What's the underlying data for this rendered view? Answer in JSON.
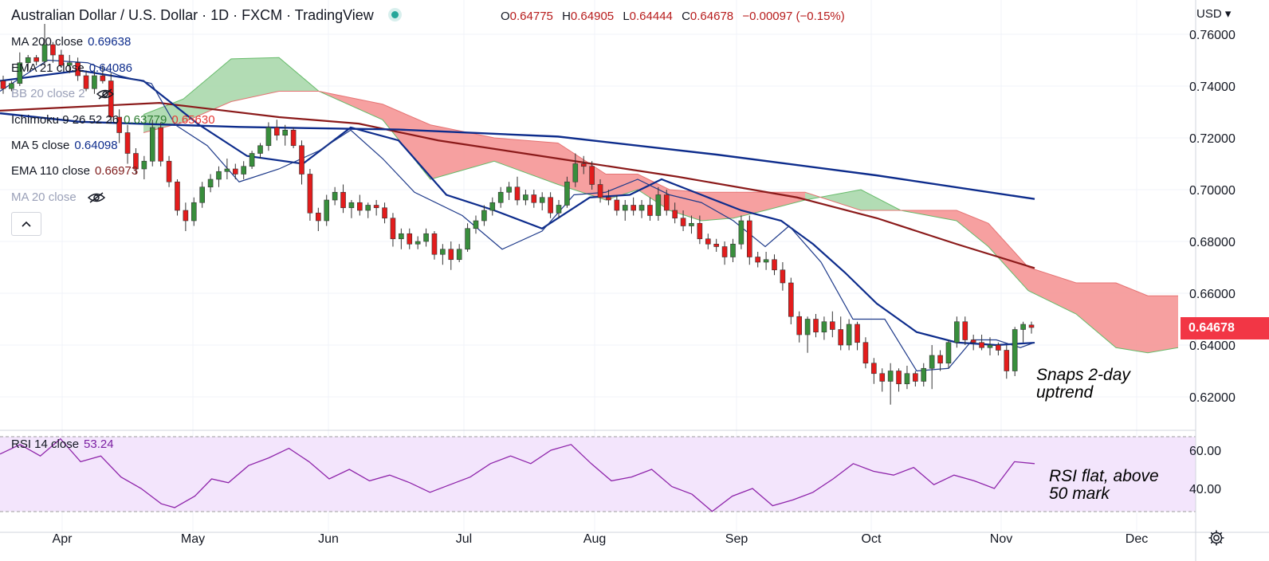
{
  "header": {
    "title": "Australian Dollar / U.S. Dollar · 1D · FXCM · TradingView",
    "ohlc": {
      "o_label": "O",
      "o": "0.64775",
      "h_label": "H",
      "h": "0.64905",
      "l_label": "L",
      "l": "0.64444",
      "c_label": "C",
      "c": "0.64678",
      "change": "−0.00097 (−0.15%)"
    }
  },
  "indicators": [
    {
      "label": "MA 200 close",
      "value": "0.69638",
      "color": "#0d2c8c"
    },
    {
      "label": "EMA 21 close",
      "value": "0.64086",
      "color": "#0d2c8c"
    },
    {
      "label": "BB 20 close 2",
      "value": "",
      "color": "#9aa0b8",
      "hidden": true
    },
    {
      "label": "Ichimoku 9 26 52 26",
      "value": "0.63779",
      "value2": "0.65630",
      "color": "#2e7d32",
      "color2": "#e53935"
    },
    {
      "label": "MA 5 close",
      "value": "0.64098",
      "color": "#0d2c8c"
    },
    {
      "label": "EMA 110 close",
      "value": "0.66973",
      "color": "#7f1d1d"
    },
    {
      "label": "MA 20 close",
      "value": "",
      "color": "#9aa0b8",
      "hidden": true
    }
  ],
  "rsi_legend": {
    "label": "RSI 14 close",
    "value": "53.24",
    "color": "#7b1fa2"
  },
  "price_axis": {
    "currency": "USD",
    "last_price": "0.64678"
  },
  "annotations": {
    "price_note": [
      "Snaps 2-day",
      "uptrend"
    ],
    "rsi_note": [
      "RSI flat, above",
      "50 mark"
    ]
  },
  "colors": {
    "up_candle": "#388e3c",
    "down_candle": "#e31c1c",
    "ema110": "#8b1a1a",
    "ma200": "#0d2c8c",
    "ema21": "#0d2c8c",
    "ma5": "#1e3a8a",
    "cloud_bull": "#a5d6a7",
    "cloud_bear": "#f48f8f",
    "rsi": "#8e24aa",
    "rsi_band": "#f3e5fc"
  },
  "chart_data": {
    "type": "candlestick",
    "title": "Australian Dollar / U.S. Dollar",
    "x_months": [
      "Apr",
      "May",
      "Jun",
      "Jul",
      "Aug",
      "Sep",
      "Oct",
      "Nov",
      "Dec"
    ],
    "price_ticks": [
      0.76,
      0.74,
      0.72,
      0.7,
      0.68,
      0.66,
      0.64,
      0.62
    ],
    "rsi_ticks": [
      60,
      40
    ],
    "rsi_band": [
      30,
      70
    ],
    "ylim": [
      0.613,
      0.766
    ],
    "ma200": [
      [
        0,
        0.7295
      ],
      [
        100,
        0.7262
      ],
      [
        300,
        0.7242
      ],
      [
        500,
        0.7232
      ],
      [
        700,
        0.7205
      ],
      [
        900,
        0.7135
      ],
      [
        1100,
        0.7055
      ],
      [
        1298,
        0.6964
      ]
    ],
    "ema110": [
      [
        0,
        0.7305
      ],
      [
        200,
        0.7335
      ],
      [
        350,
        0.728
      ],
      [
        450,
        0.7255
      ],
      [
        550,
        0.719
      ],
      [
        700,
        0.712
      ],
      [
        850,
        0.705
      ],
      [
        1000,
        0.697
      ],
      [
        1100,
        0.689
      ],
      [
        1200,
        0.679
      ],
      [
        1298,
        0.6697
      ]
    ],
    "ema21": [
      [
        0,
        0.742
      ],
      [
        100,
        0.746
      ],
      [
        180,
        0.742
      ],
      [
        250,
        0.725
      ],
      [
        310,
        0.713
      ],
      [
        380,
        0.71
      ],
      [
        440,
        0.724
      ],
      [
        500,
        0.719
      ],
      [
        560,
        0.698
      ],
      [
        620,
        0.692
      ],
      [
        680,
        0.685
      ],
      [
        740,
        0.697
      ],
      [
        790,
        0.698
      ],
      [
        830,
        0.704
      ],
      [
        880,
        0.698
      ],
      [
        930,
        0.692
      ],
      [
        980,
        0.688
      ],
      [
        1020,
        0.679
      ],
      [
        1060,
        0.668
      ],
      [
        1100,
        0.656
      ],
      [
        1150,
        0.645
      ],
      [
        1200,
        0.641
      ],
      [
        1250,
        0.64
      ],
      [
        1298,
        0.6409
      ]
    ],
    "ma5": [
      [
        0,
        0.738
      ],
      [
        60,
        0.75
      ],
      [
        110,
        0.749
      ],
      [
        150,
        0.744
      ],
      [
        190,
        0.741
      ],
      [
        220,
        0.725
      ],
      [
        260,
        0.717
      ],
      [
        300,
        0.703
      ],
      [
        350,
        0.708
      ],
      [
        400,
        0.715
      ],
      [
        440,
        0.723
      ],
      [
        480,
        0.712
      ],
      [
        520,
        0.699
      ],
      [
        580,
        0.69
      ],
      [
        630,
        0.677
      ],
      [
        680,
        0.684
      ],
      [
        720,
        0.698
      ],
      [
        760,
        0.699
      ],
      [
        800,
        0.704
      ],
      [
        840,
        0.698
      ],
      [
        880,
        0.695
      ],
      [
        920,
        0.688
      ],
      [
        960,
        0.678
      ],
      [
        990,
        0.686
      ],
      [
        1030,
        0.672
      ],
      [
        1070,
        0.65
      ],
      [
        1110,
        0.65
      ],
      [
        1150,
        0.63
      ],
      [
        1190,
        0.631
      ],
      [
        1220,
        0.642
      ],
      [
        1250,
        0.642
      ],
      [
        1280,
        0.639
      ],
      [
        1298,
        0.641
      ]
    ],
    "kumo_span_a": [
      [
        180,
        0.729
      ],
      [
        230,
        0.735
      ],
      [
        290,
        0.7505
      ],
      [
        350,
        0.751
      ],
      [
        400,
        0.738
      ],
      [
        480,
        0.727
      ],
      [
        540,
        0.704
      ],
      [
        620,
        0.711
      ],
      [
        700,
        0.702
      ],
      [
        760,
        0.696
      ],
      [
        800,
        0.7
      ],
      [
        840,
        0.692
      ],
      [
        880,
        0.688
      ],
      [
        920,
        0.689
      ],
      [
        960,
        0.692
      ],
      [
        1010,
        0.696
      ],
      [
        1080,
        0.7
      ],
      [
        1130,
        0.692
      ],
      [
        1200,
        0.688
      ],
      [
        1240,
        0.678
      ],
      [
        1290,
        0.661
      ],
      [
        1350,
        0.652
      ],
      [
        1400,
        0.639
      ],
      [
        1440,
        0.637
      ],
      [
        1478,
        0.639
      ]
    ],
    "kumo_span_b": [
      [
        180,
        0.722
      ],
      [
        230,
        0.726
      ],
      [
        290,
        0.734
      ],
      [
        350,
        0.738
      ],
      [
        400,
        0.738
      ],
      [
        480,
        0.733
      ],
      [
        540,
        0.725
      ],
      [
        620,
        0.72
      ],
      [
        700,
        0.718
      ],
      [
        760,
        0.706
      ],
      [
        800,
        0.706
      ],
      [
        840,
        0.7
      ],
      [
        880,
        0.699
      ],
      [
        920,
        0.699
      ],
      [
        960,
        0.699
      ],
      [
        1010,
        0.699
      ],
      [
        1080,
        0.692
      ],
      [
        1130,
        0.692
      ],
      [
        1200,
        0.692
      ],
      [
        1240,
        0.687
      ],
      [
        1290,
        0.67
      ],
      [
        1350,
        0.664
      ],
      [
        1400,
        0.664
      ],
      [
        1440,
        0.659
      ],
      [
        1478,
        0.659
      ]
    ],
    "candles": [
      [
        0.742,
        0.744,
        0.737,
        0.739
      ],
      [
        0.739,
        0.742,
        0.738,
        0.741
      ],
      [
        0.741,
        0.753,
        0.74,
        0.749
      ],
      [
        0.749,
        0.752,
        0.746,
        0.751
      ],
      [
        0.751,
        0.752,
        0.748,
        0.7495
      ],
      [
        0.7495,
        0.764,
        0.748,
        0.756
      ],
      [
        0.756,
        0.757,
        0.749,
        0.752
      ],
      [
        0.752,
        0.754,
        0.747,
        0.748
      ],
      [
        0.748,
        0.752,
        0.745,
        0.749
      ],
      [
        0.749,
        0.751,
        0.742,
        0.744
      ],
      [
        0.744,
        0.746,
        0.738,
        0.739
      ],
      [
        0.739,
        0.747,
        0.737,
        0.744
      ],
      [
        0.744,
        0.748,
        0.741,
        0.742
      ],
      [
        0.742,
        0.745,
        0.726,
        0.728
      ],
      [
        0.728,
        0.731,
        0.718,
        0.722
      ],
      [
        0.722,
        0.725,
        0.71,
        0.714
      ],
      [
        0.714,
        0.716,
        0.706,
        0.708
      ],
      [
        0.708,
        0.713,
        0.704,
        0.711
      ],
      [
        0.711,
        0.727,
        0.709,
        0.724
      ],
      [
        0.724,
        0.726,
        0.709,
        0.711
      ],
      [
        0.711,
        0.713,
        0.701,
        0.703
      ],
      [
        0.703,
        0.704,
        0.69,
        0.692
      ],
      [
        0.692,
        0.695,
        0.684,
        0.688
      ],
      [
        0.688,
        0.697,
        0.686,
        0.695
      ],
      [
        0.695,
        0.703,
        0.693,
        0.701
      ],
      [
        0.701,
        0.706,
        0.699,
        0.704
      ],
      [
        0.704,
        0.709,
        0.701,
        0.707
      ],
      [
        0.707,
        0.712,
        0.704,
        0.708
      ],
      [
        0.708,
        0.71,
        0.704,
        0.706
      ],
      [
        0.706,
        0.711,
        0.704,
        0.709
      ],
      [
        0.709,
        0.715,
        0.708,
        0.714
      ],
      [
        0.714,
        0.718,
        0.712,
        0.717
      ],
      [
        0.717,
        0.726,
        0.715,
        0.724
      ],
      [
        0.724,
        0.727,
        0.719,
        0.721
      ],
      [
        0.721,
        0.725,
        0.717,
        0.723
      ],
      [
        0.723,
        0.724,
        0.716,
        0.717
      ],
      [
        0.717,
        0.719,
        0.702,
        0.706
      ],
      [
        0.706,
        0.708,
        0.688,
        0.691
      ],
      [
        0.691,
        0.693,
        0.684,
        0.688
      ],
      [
        0.688,
        0.698,
        0.686,
        0.696
      ],
      [
        0.696,
        0.701,
        0.694,
        0.699
      ],
      [
        0.699,
        0.702,
        0.691,
        0.693
      ],
      [
        0.693,
        0.696,
        0.689,
        0.695
      ],
      [
        0.695,
        0.698,
        0.69,
        0.692
      ],
      [
        0.692,
        0.695,
        0.689,
        0.694
      ],
      [
        0.694,
        0.696,
        0.69,
        0.693
      ],
      [
        0.693,
        0.695,
        0.687,
        0.689
      ],
      [
        0.689,
        0.691,
        0.678,
        0.681
      ],
      [
        0.681,
        0.685,
        0.677,
        0.683
      ],
      [
        0.683,
        0.685,
        0.677,
        0.679
      ],
      [
        0.679,
        0.682,
        0.677,
        0.68
      ],
      [
        0.68,
        0.685,
        0.678,
        0.683
      ],
      [
        0.683,
        0.684,
        0.673,
        0.675
      ],
      [
        0.675,
        0.679,
        0.671,
        0.677
      ],
      [
        0.677,
        0.68,
        0.669,
        0.673
      ],
      [
        0.673,
        0.679,
        0.672,
        0.677
      ],
      [
        0.677,
        0.687,
        0.676,
        0.685
      ],
      [
        0.685,
        0.69,
        0.683,
        0.688
      ],
      [
        0.688,
        0.694,
        0.686,
        0.692
      ],
      [
        0.692,
        0.697,
        0.69,
        0.695
      ],
      [
        0.695,
        0.701,
        0.693,
        0.699
      ],
      [
        0.699,
        0.703,
        0.696,
        0.701
      ],
      [
        0.701,
        0.705,
        0.694,
        0.696
      ],
      [
        0.696,
        0.7,
        0.694,
        0.698
      ],
      [
        0.698,
        0.7,
        0.693,
        0.695
      ],
      [
        0.695,
        0.699,
        0.692,
        0.697
      ],
      [
        0.697,
        0.699,
        0.689,
        0.691
      ],
      [
        0.691,
        0.696,
        0.689,
        0.694
      ],
      [
        0.694,
        0.705,
        0.693,
        0.703
      ],
      [
        0.703,
        0.714,
        0.701,
        0.71
      ],
      [
        0.71,
        0.713,
        0.706,
        0.709
      ],
      [
        0.709,
        0.711,
        0.7,
        0.702
      ],
      [
        0.702,
        0.704,
        0.695,
        0.697
      ],
      [
        0.697,
        0.7,
        0.694,
        0.696
      ],
      [
        0.696,
        0.698,
        0.69,
        0.692
      ],
      [
        0.692,
        0.696,
        0.688,
        0.694
      ],
      [
        0.694,
        0.697,
        0.69,
        0.692
      ],
      [
        0.692,
        0.696,
        0.689,
        0.694
      ],
      [
        0.694,
        0.697,
        0.688,
        0.69
      ],
      [
        0.69,
        0.701,
        0.688,
        0.698
      ],
      [
        0.698,
        0.7,
        0.69,
        0.692
      ],
      [
        0.692,
        0.695,
        0.687,
        0.689
      ],
      [
        0.689,
        0.692,
        0.684,
        0.686
      ],
      [
        0.686,
        0.69,
        0.683,
        0.687
      ],
      [
        0.687,
        0.69,
        0.679,
        0.681
      ],
      [
        0.681,
        0.683,
        0.677,
        0.679
      ],
      [
        0.679,
        0.681,
        0.676,
        0.678
      ],
      [
        0.678,
        0.68,
        0.671,
        0.674
      ],
      [
        0.674,
        0.681,
        0.672,
        0.679
      ],
      [
        0.679,
        0.69,
        0.677,
        0.688
      ],
      [
        0.688,
        0.69,
        0.671,
        0.674
      ],
      [
        0.674,
        0.676,
        0.67,
        0.672
      ],
      [
        0.672,
        0.676,
        0.669,
        0.673
      ],
      [
        0.673,
        0.675,
        0.667,
        0.669
      ],
      [
        0.669,
        0.672,
        0.661,
        0.664
      ],
      [
        0.664,
        0.666,
        0.648,
        0.651
      ],
      [
        0.651,
        0.653,
        0.641,
        0.644
      ],
      [
        0.644,
        0.651,
        0.637,
        0.65
      ],
      [
        0.65,
        0.652,
        0.643,
        0.645
      ],
      [
        0.645,
        0.651,
        0.642,
        0.649
      ],
      [
        0.649,
        0.653,
        0.643,
        0.646
      ],
      [
        0.646,
        0.651,
        0.638,
        0.64
      ],
      [
        0.64,
        0.65,
        0.638,
        0.648
      ],
      [
        0.648,
        0.649,
        0.638,
        0.641
      ],
      [
        0.641,
        0.643,
        0.631,
        0.633
      ],
      [
        0.633,
        0.635,
        0.625,
        0.629
      ],
      [
        0.629,
        0.631,
        0.622,
        0.626
      ],
      [
        0.626,
        0.633,
        0.617,
        0.63
      ],
      [
        0.63,
        0.631,
        0.622,
        0.625
      ],
      [
        0.625,
        0.632,
        0.623,
        0.629
      ],
      [
        0.629,
        0.63,
        0.624,
        0.626
      ],
      [
        0.626,
        0.633,
        0.624,
        0.631
      ],
      [
        0.631,
        0.64,
        0.623,
        0.636
      ],
      [
        0.636,
        0.638,
        0.63,
        0.633
      ],
      [
        0.633,
        0.642,
        0.631,
        0.641
      ],
      [
        0.641,
        0.651,
        0.639,
        0.649
      ],
      [
        0.649,
        0.651,
        0.64,
        0.642
      ],
      [
        0.642,
        0.644,
        0.638,
        0.641
      ],
      [
        0.641,
        0.644,
        0.638,
        0.639
      ],
      [
        0.639,
        0.643,
        0.636,
        0.64
      ],
      [
        0.64,
        0.641,
        0.636,
        0.638
      ],
      [
        0.638,
        0.64,
        0.627,
        0.63
      ],
      [
        0.63,
        0.647,
        0.628,
        0.646
      ],
      [
        0.646,
        0.649,
        0.641,
        0.648
      ],
      [
        0.64775,
        0.64905,
        0.64444,
        0.64678
      ]
    ],
    "rsi": [
      [
        0,
        58
      ],
      [
        30,
        63
      ],
      [
        60,
        57
      ],
      [
        90,
        66
      ],
      [
        120,
        54
      ],
      [
        150,
        57
      ],
      [
        180,
        46
      ],
      [
        210,
        40
      ],
      [
        240,
        32
      ],
      [
        260,
        30
      ],
      [
        290,
        36
      ],
      [
        315,
        45
      ],
      [
        340,
        43
      ],
      [
        370,
        52
      ],
      [
        400,
        56
      ],
      [
        430,
        61
      ],
      [
        460,
        54
      ],
      [
        490,
        45
      ],
      [
        520,
        50
      ],
      [
        550,
        44
      ],
      [
        580,
        47
      ],
      [
        610,
        43
      ],
      [
        640,
        38
      ],
      [
        670,
        42
      ],
      [
        700,
        46
      ],
      [
        730,
        53
      ],
      [
        760,
        57
      ],
      [
        790,
        53
      ],
      [
        820,
        60
      ],
      [
        850,
        63
      ],
      [
        880,
        53
      ],
      [
        910,
        44
      ],
      [
        940,
        46
      ],
      [
        970,
        50
      ],
      [
        1000,
        41
      ],
      [
        1030,
        37
      ],
      [
        1060,
        28
      ],
      [
        1090,
        36
      ],
      [
        1120,
        40
      ],
      [
        1150,
        31
      ],
      [
        1180,
        34
      ],
      [
        1210,
        38
      ],
      [
        1240,
        45
      ],
      [
        1270,
        53
      ],
      [
        1300,
        49
      ],
      [
        1330,
        47
      ],
      [
        1360,
        51
      ],
      [
        1390,
        42
      ],
      [
        1420,
        47
      ],
      [
        1450,
        44
      ],
      [
        1480,
        40
      ],
      [
        1510,
        54
      ],
      [
        1540,
        53
      ]
    ]
  }
}
